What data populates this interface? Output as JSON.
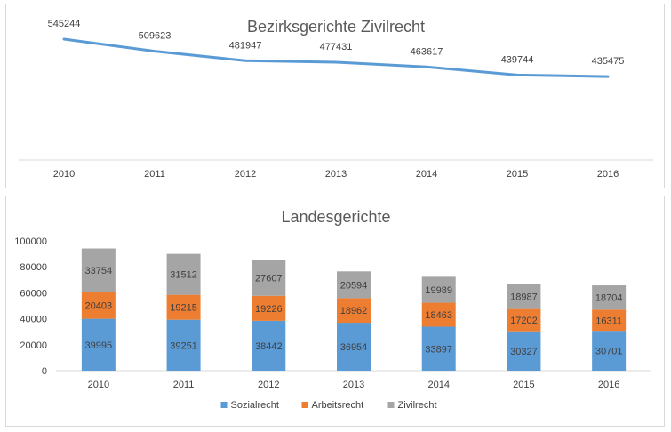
{
  "chart_data": [
    {
      "type": "line",
      "title": "Bezirksgerichte Zivilrecht",
      "categories": [
        "2010",
        "2011",
        "2012",
        "2013",
        "2014",
        "2015",
        "2016"
      ],
      "values": [
        545244,
        509623,
        481947,
        477431,
        463617,
        439744,
        435475
      ],
      "data_labels": [
        "545244",
        "509623",
        "481947",
        "477431",
        "463617",
        "439744",
        "435475"
      ],
      "color": "#5b9bd5",
      "grid": false,
      "y_axis_visible": false
    },
    {
      "type": "bar",
      "stacked": true,
      "title": "Landesgerichte",
      "categories": [
        "2010",
        "2011",
        "2012",
        "2013",
        "2014",
        "2015",
        "2016"
      ],
      "series": [
        {
          "name": "Sozialrecht",
          "color": "#5b9bd5",
          "values": [
            39995,
            39251,
            38442,
            36954,
            33897,
            30327,
            30701
          ],
          "labels": [
            "39995",
            "39251",
            "38442",
            "36954",
            "33897",
            "30327",
            "30701"
          ]
        },
        {
          "name": "Arbeitsrecht",
          "color": "#ed7d31",
          "values": [
            20403,
            19215,
            19226,
            18962,
            18463,
            17202,
            16311
          ],
          "labels": [
            "20403",
            "19215",
            "19226",
            "18962",
            "18463",
            "17202",
            "16311"
          ]
        },
        {
          "name": "Zivilrecht",
          "color": "#a5a5a5",
          "values": [
            33754,
            31512,
            27607,
            20594,
            19989,
            18987,
            18704
          ],
          "labels": [
            "33754",
            "31512",
            "27607",
            "20594",
            "19989",
            "18987",
            "18704"
          ]
        }
      ],
      "ylim": [
        0,
        100000
      ],
      "yticks": [
        "0",
        "20000",
        "40000",
        "60000",
        "80000",
        "100000"
      ],
      "legend_position": "bottom",
      "grid": false
    }
  ]
}
